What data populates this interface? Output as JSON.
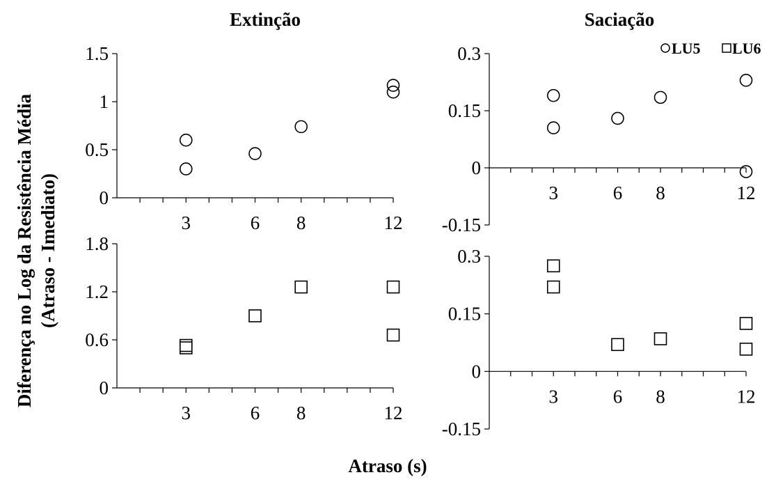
{
  "figure": {
    "ylabel_line1": "Diferença no Log da Resistência Média",
    "ylabel_line2": "(Atraso - Imediato)",
    "xlabel": "Atraso (s)"
  },
  "legend": [
    {
      "label": "LU5",
      "marker": "circle"
    },
    {
      "label": "LU6",
      "marker": "square"
    }
  ],
  "colors": {
    "marker_stroke": "#000000",
    "axis": "#000000",
    "background": "#ffffff"
  },
  "chart_data": [
    {
      "type": "scatter",
      "panel": "top-left",
      "title": "Extinção",
      "series_label": "LU5",
      "marker": "circle",
      "xlim": [
        0,
        12
      ],
      "ylim": [
        0,
        1.5
      ],
      "xticks": [
        3,
        6,
        8,
        12
      ],
      "yticks": [
        0,
        0.5,
        1,
        1.5
      ],
      "ytick_labels": [
        "0",
        "0.5",
        "1",
        "1.5"
      ],
      "points": [
        {
          "x": 3,
          "y": 0.6
        },
        {
          "x": 3,
          "y": 0.3
        },
        {
          "x": 6,
          "y": 0.46
        },
        {
          "x": 8,
          "y": 0.74
        },
        {
          "x": 12,
          "y": 1.17
        },
        {
          "x": 12,
          "y": 1.1
        }
      ]
    },
    {
      "type": "scatter",
      "panel": "top-right",
      "title": "Saciação",
      "series_label": "LU5",
      "marker": "circle",
      "xlim": [
        0,
        12
      ],
      "ylim": [
        -0.15,
        0.3
      ],
      "xticks": [
        3,
        6,
        8,
        12
      ],
      "yticks": [
        -0.15,
        0,
        0.15,
        0.3
      ],
      "ytick_labels": [
        "-0.15",
        "0",
        "0.15",
        "0.3"
      ],
      "points": [
        {
          "x": 3,
          "y": 0.19
        },
        {
          "x": 3,
          "y": 0.105
        },
        {
          "x": 6,
          "y": 0.13
        },
        {
          "x": 8,
          "y": 0.185
        },
        {
          "x": 12,
          "y": 0.23
        },
        {
          "x": 12,
          "y": -0.01
        }
      ]
    },
    {
      "type": "scatter",
      "panel": "bottom-left",
      "title": "",
      "series_label": "LU6",
      "marker": "square",
      "xlim": [
        0,
        12
      ],
      "ylim": [
        0,
        1.8
      ],
      "xticks": [
        3,
        6,
        8,
        12
      ],
      "yticks": [
        0,
        0.6,
        1.2,
        1.8
      ],
      "ytick_labels": [
        "0",
        "0.6",
        "1.2",
        "1.8"
      ],
      "points": [
        {
          "x": 3,
          "y": 0.53
        },
        {
          "x": 3,
          "y": 0.5
        },
        {
          "x": 6,
          "y": 0.9
        },
        {
          "x": 8,
          "y": 1.26
        },
        {
          "x": 12,
          "y": 1.26
        },
        {
          "x": 12,
          "y": 0.66
        }
      ]
    },
    {
      "type": "scatter",
      "panel": "bottom-right",
      "title": "",
      "series_label": "LU6",
      "marker": "square",
      "xlim": [
        0,
        12
      ],
      "ylim": [
        -0.15,
        0.3
      ],
      "xticks": [
        3,
        6,
        8,
        12
      ],
      "yticks": [
        -0.15,
        0,
        0.15,
        0.3
      ],
      "ytick_labels": [
        "-0.15",
        "0",
        "0.15",
        "0.3"
      ],
      "points": [
        {
          "x": 3,
          "y": 0.275
        },
        {
          "x": 3,
          "y": 0.22
        },
        {
          "x": 6,
          "y": 0.07
        },
        {
          "x": 8,
          "y": 0.085
        },
        {
          "x": 12,
          "y": 0.125
        },
        {
          "x": 12,
          "y": 0.058
        }
      ]
    }
  ]
}
